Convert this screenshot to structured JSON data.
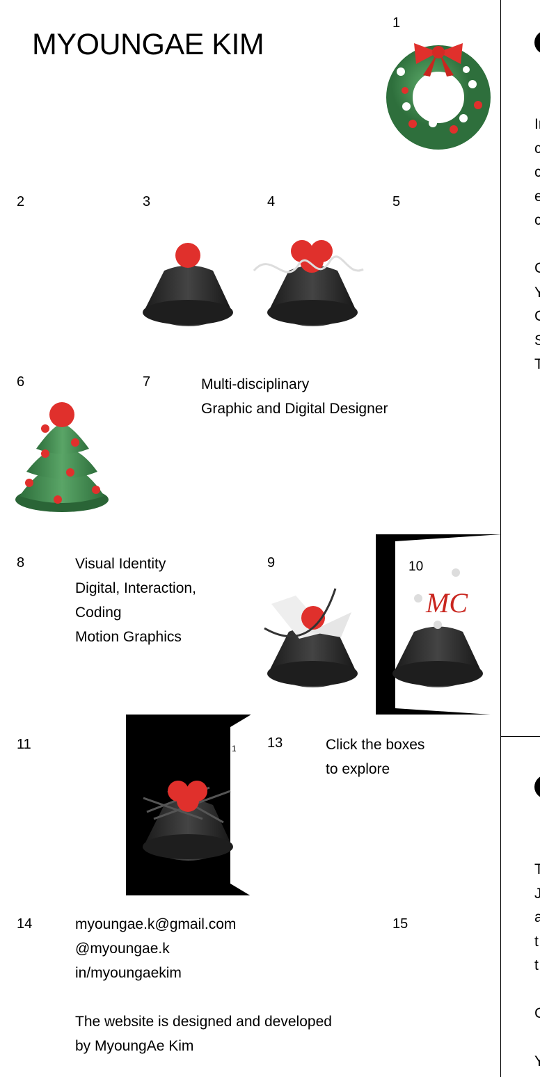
{
  "header": {
    "title": "MYOUNGAE KIM"
  },
  "cells": {
    "c1": {
      "num": "1"
    },
    "c2": {
      "num": "2"
    },
    "c3": {
      "num": "3"
    },
    "c4": {
      "num": "4"
    },
    "c5": {
      "num": "5"
    },
    "c6": {
      "num": "6"
    },
    "c7": {
      "num": "7",
      "lines": [
        "Multi-disciplinary",
        "Graphic and Digital Designer"
      ]
    },
    "c8": {
      "num": "8",
      "lines": [
        "Visual Identity",
        "Digital, Interaction,",
        "Coding",
        "Motion Graphics"
      ]
    },
    "c9": {
      "num": "9"
    },
    "c10": {
      "num": "10",
      "monogram": "MC"
    },
    "c11": {
      "num": "11"
    },
    "c12": {
      "num": "1"
    },
    "c13": {
      "num": "13",
      "lines": [
        "Click the boxes",
        "to explore"
      ]
    },
    "c14": {
      "num": "14",
      "email": "myoungae.k@gmail.com",
      "instagram": "@myoungae.k",
      "linkedin": "in/myoungaekim",
      "credit_lines": [
        "The website is designed and developed",
        "by MyoungAe Kim"
      ]
    },
    "c15": {
      "num": "15"
    }
  },
  "right_panel": {
    "top_lines": [
      "Ir",
      "c",
      "c",
      "e",
      "c",
      "",
      "C",
      "Y",
      "C",
      "S",
      "T"
    ],
    "bottom_lines": [
      "T",
      "J",
      "a",
      "t",
      "t",
      "",
      "C",
      "",
      "Y"
    ]
  },
  "colors": {
    "red": "#e0302c",
    "green": "#3f8a4f",
    "dark": "#262626"
  }
}
